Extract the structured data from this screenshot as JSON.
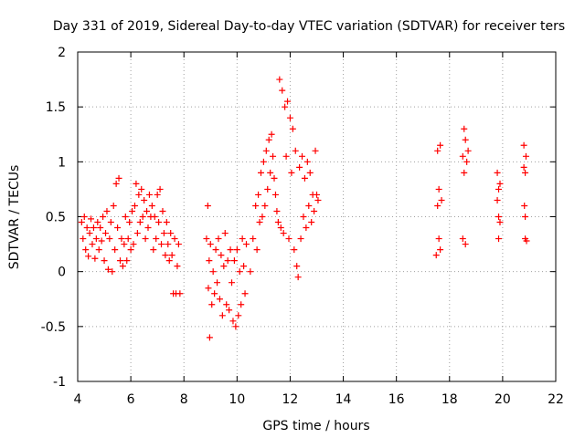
{
  "chart_data": {
    "type": "scatter",
    "title": "Day 331 of 2019, Sidereal Day-to-day VTEC variation (SDTVAR) for receiver ters",
    "xlabel": "GPS time / hours",
    "ylabel": "SDTVAR / TECUs",
    "xlim": [
      4,
      22
    ],
    "ylim": [
      -1,
      2
    ],
    "x_ticks": [
      4,
      6,
      8,
      10,
      12,
      14,
      16,
      18,
      20,
      22
    ],
    "y_ticks": [
      -1,
      -0.5,
      0,
      0.5,
      1,
      1.5,
      2
    ],
    "x_tick_labels": [
      "4",
      "6",
      "8",
      "10",
      "12",
      "14",
      "16",
      "18",
      "20",
      "22"
    ],
    "y_tick_labels": [
      "-1",
      "-0.5",
      "0",
      "0.5",
      "1",
      "1.5",
      "2"
    ],
    "grid": true,
    "marker": "+",
    "series_color": "#ff0000",
    "series": [
      {
        "name": "SDTVAR",
        "points": [
          [
            4.15,
            0.45
          ],
          [
            4.2,
            0.3
          ],
          [
            4.25,
            0.5
          ],
          [
            4.3,
            0.2
          ],
          [
            4.35,
            0.4
          ],
          [
            4.4,
            0.14
          ],
          [
            4.45,
            0.35
          ],
          [
            4.5,
            0.48
          ],
          [
            4.55,
            0.25
          ],
          [
            4.6,
            0.4
          ],
          [
            4.65,
            0.12
          ],
          [
            4.7,
            0.3
          ],
          [
            4.75,
            0.45
          ],
          [
            4.8,
            0.2
          ],
          [
            4.85,
            0.4
          ],
          [
            4.9,
            0.28
          ],
          [
            4.95,
            0.5
          ],
          [
            5.0,
            0.1
          ],
          [
            5.05,
            0.35
          ],
          [
            5.1,
            0.55
          ],
          [
            5.15,
            0.02
          ],
          [
            5.2,
            0.3
          ],
          [
            5.25,
            0.45
          ],
          [
            5.3,
            0.0
          ],
          [
            5.35,
            0.6
          ],
          [
            5.4,
            0.2
          ],
          [
            5.45,
            0.8
          ],
          [
            5.5,
            0.4
          ],
          [
            5.55,
            0.85
          ],
          [
            5.6,
            0.1
          ],
          [
            5.65,
            0.3
          ],
          [
            5.7,
            0.05
          ],
          [
            5.75,
            0.25
          ],
          [
            5.8,
            0.5
          ],
          [
            5.85,
            0.1
          ],
          [
            5.9,
            0.3
          ],
          [
            5.95,
            0.45
          ],
          [
            6.0,
            0.2
          ],
          [
            6.05,
            0.55
          ],
          [
            6.1,
            0.25
          ],
          [
            6.15,
            0.6
          ],
          [
            6.2,
            0.8
          ],
          [
            6.25,
            0.35
          ],
          [
            6.3,
            0.7
          ],
          [
            6.35,
            0.45
          ],
          [
            6.4,
            0.75
          ],
          [
            6.45,
            0.5
          ],
          [
            6.5,
            0.65
          ],
          [
            6.55,
            0.3
          ],
          [
            6.6,
            0.55
          ],
          [
            6.65,
            0.4
          ],
          [
            6.7,
            0.7
          ],
          [
            6.75,
            0.5
          ],
          [
            6.8,
            0.6
          ],
          [
            6.85,
            0.2
          ],
          [
            6.9,
            0.5
          ],
          [
            6.95,
            0.3
          ],
          [
            7.0,
            0.7
          ],
          [
            7.05,
            0.45
          ],
          [
            7.1,
            0.75
          ],
          [
            7.15,
            0.25
          ],
          [
            7.2,
            0.55
          ],
          [
            7.25,
            0.35
          ],
          [
            7.3,
            0.15
          ],
          [
            7.35,
            0.45
          ],
          [
            7.4,
            0.25
          ],
          [
            7.45,
            0.1
          ],
          [
            7.5,
            0.35
          ],
          [
            7.55,
            0.15
          ],
          [
            7.6,
            -0.2
          ],
          [
            7.65,
            0.3
          ],
          [
            7.7,
            -0.2
          ],
          [
            7.75,
            0.05
          ],
          [
            7.8,
            0.25
          ],
          [
            7.85,
            -0.2
          ],
          [
            8.85,
            0.3
          ],
          [
            8.9,
            0.6
          ],
          [
            8.92,
            -0.15
          ],
          [
            8.95,
            0.1
          ],
          [
            8.97,
            -0.6
          ],
          [
            9.0,
            0.25
          ],
          [
            9.05,
            -0.3
          ],
          [
            9.1,
            0.0
          ],
          [
            9.15,
            -0.2
          ],
          [
            9.2,
            0.2
          ],
          [
            9.25,
            -0.1
          ],
          [
            9.3,
            0.3
          ],
          [
            9.35,
            -0.25
          ],
          [
            9.4,
            0.15
          ],
          [
            9.45,
            -0.4
          ],
          [
            9.5,
            0.05
          ],
          [
            9.55,
            0.35
          ],
          [
            9.6,
            -0.3
          ],
          [
            9.65,
            0.1
          ],
          [
            9.7,
            -0.35
          ],
          [
            9.75,
            0.2
          ],
          [
            9.8,
            -0.1
          ],
          [
            9.85,
            -0.45
          ],
          [
            9.9,
            0.1
          ],
          [
            9.95,
            -0.5
          ],
          [
            10.0,
            0.2
          ],
          [
            10.05,
            -0.4
          ],
          [
            10.1,
            0.0
          ],
          [
            10.15,
            -0.3
          ],
          [
            10.2,
            0.3
          ],
          [
            10.25,
            0.05
          ],
          [
            10.3,
            -0.2
          ],
          [
            10.35,
            0.25
          ],
          [
            10.5,
            0.0
          ],
          [
            10.6,
            0.3
          ],
          [
            10.7,
            0.6
          ],
          [
            10.75,
            0.2
          ],
          [
            10.8,
            0.7
          ],
          [
            10.85,
            0.45
          ],
          [
            10.9,
            0.9
          ],
          [
            10.95,
            0.5
          ],
          [
            11.0,
            1.0
          ],
          [
            11.05,
            0.6
          ],
          [
            11.1,
            1.1
          ],
          [
            11.15,
            0.75
          ],
          [
            11.2,
            1.2
          ],
          [
            11.25,
            0.9
          ],
          [
            11.3,
            1.25
          ],
          [
            11.35,
            1.05
          ],
          [
            11.4,
            0.85
          ],
          [
            11.45,
            0.7
          ],
          [
            11.5,
            0.55
          ],
          [
            11.55,
            0.45
          ],
          [
            11.6,
            1.75
          ],
          [
            11.65,
            0.4
          ],
          [
            11.7,
            1.65
          ],
          [
            11.75,
            0.35
          ],
          [
            11.8,
            1.5
          ],
          [
            11.85,
            1.05
          ],
          [
            11.9,
            1.55
          ],
          [
            11.95,
            0.3
          ],
          [
            12.0,
            1.4
          ],
          [
            12.05,
            0.9
          ],
          [
            12.1,
            1.3
          ],
          [
            12.15,
            0.2
          ],
          [
            12.2,
            1.1
          ],
          [
            12.25,
            0.05
          ],
          [
            12.3,
            -0.05
          ],
          [
            12.35,
            0.95
          ],
          [
            12.4,
            0.3
          ],
          [
            12.45,
            1.05
          ],
          [
            12.5,
            0.5
          ],
          [
            12.55,
            0.85
          ],
          [
            12.6,
            0.4
          ],
          [
            12.65,
            1.0
          ],
          [
            12.7,
            0.6
          ],
          [
            12.75,
            0.9
          ],
          [
            12.8,
            0.45
          ],
          [
            12.85,
            0.7
          ],
          [
            12.9,
            0.55
          ],
          [
            12.95,
            1.1
          ],
          [
            13.0,
            0.7
          ],
          [
            13.05,
            0.65
          ],
          [
            17.5,
            0.15
          ],
          [
            17.55,
            0.6
          ],
          [
            17.55,
            1.1
          ],
          [
            17.6,
            0.3
          ],
          [
            17.6,
            0.75
          ],
          [
            17.65,
            0.2
          ],
          [
            17.65,
            1.15
          ],
          [
            17.7,
            0.65
          ],
          [
            18.5,
            0.3
          ],
          [
            18.5,
            1.05
          ],
          [
            18.55,
            0.9
          ],
          [
            18.55,
            1.3
          ],
          [
            18.6,
            0.25
          ],
          [
            18.6,
            1.2
          ],
          [
            18.65,
            1.0
          ],
          [
            18.7,
            1.1
          ],
          [
            19.8,
            0.9
          ],
          [
            19.8,
            0.65
          ],
          [
            19.85,
            0.5
          ],
          [
            19.85,
            0.3
          ],
          [
            19.9,
            0.8
          ],
          [
            19.9,
            0.45
          ],
          [
            19.85,
            0.75
          ],
          [
            20.8,
            1.15
          ],
          [
            20.8,
            0.95
          ],
          [
            20.82,
            0.6
          ],
          [
            20.85,
            0.9
          ],
          [
            20.85,
            0.5
          ],
          [
            20.85,
            0.3
          ],
          [
            20.88,
            1.05
          ],
          [
            20.9,
            0.28
          ]
        ]
      }
    ]
  }
}
